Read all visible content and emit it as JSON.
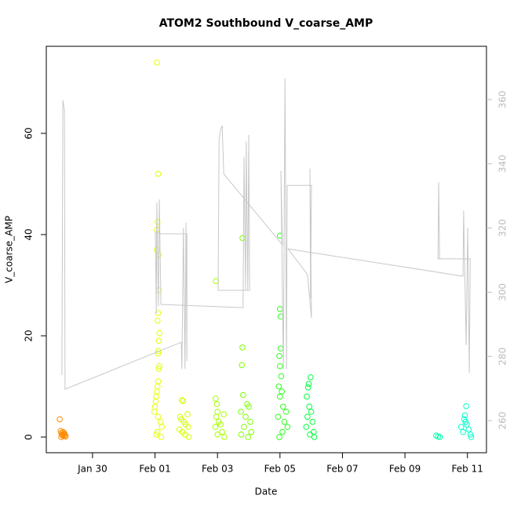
{
  "chart_data": {
    "type": "scatter",
    "title": "ATOM2 Southbound V_coarse_AMP",
    "x_label": "Date",
    "y_label": "V_coarse_AMP",
    "xlim": [
      -1.48,
      12.61
    ],
    "ylim": [
      -3.1,
      77.2
    ],
    "y2lim": [
      250,
      376.6
    ],
    "xticks": [
      {
        "value": 0,
        "label": "Jan 30"
      },
      {
        "value": 2,
        "label": "Feb 01"
      },
      {
        "value": 4,
        "label": "Feb 03"
      },
      {
        "value": 6,
        "label": "Feb 05"
      },
      {
        "value": 8,
        "label": "Feb 07"
      },
      {
        "value": 10,
        "label": "Feb 09"
      },
      {
        "value": 12,
        "label": "Feb 11"
      }
    ],
    "yticks": [
      0,
      20,
      40,
      60
    ],
    "y2ticks": [
      260,
      280,
      300,
      320,
      340,
      360
    ],
    "series": [
      {
        "color": "#ff8c00",
        "x": [
          -1.05,
          -1.02,
          -1.0,
          -0.98,
          -0.96,
          -0.94,
          -0.92,
          -0.9,
          -0.88,
          -0.86,
          -1.0,
          -0.95,
          -0.9
        ],
        "values": [
          3.5,
          1.2,
          0.8,
          0.5,
          0.3,
          1.0,
          0.6,
          0.2,
          0.4,
          0.1,
          0,
          0.3,
          0.7
        ]
      },
      {
        "color": "#e6ff00",
        "x": [
          2.06,
          2.1,
          2.08,
          2.06,
          2.06,
          2.12,
          2.12,
          2.1,
          2.08,
          2.14,
          2.12,
          2.1,
          2.1,
          2.14,
          2.12,
          2.1,
          2.08,
          2.06,
          2.04,
          2.02,
          2.0,
          1.98,
          2.1,
          2.18,
          2.22,
          2.08,
          2.04,
          2.2
        ],
        "values": [
          74,
          52,
          42.5,
          41,
          37,
          36,
          29,
          24.5,
          23,
          20.5,
          19,
          17,
          16.5,
          14,
          13.5,
          11,
          10,
          9,
          8,
          7,
          6,
          5,
          4,
          3,
          2,
          1,
          0.5,
          0
        ]
      },
      {
        "color": "#d4ff00",
        "x": [
          2.86,
          2.9,
          3.04,
          2.8,
          2.84,
          2.92,
          2.98,
          3.06,
          2.78,
          2.88,
          2.96,
          3.08
        ],
        "values": [
          7.3,
          7.1,
          4.5,
          4,
          3.5,
          3,
          2.5,
          2,
          1.5,
          1,
          0.5,
          0
        ]
      },
      {
        "color": "#a8ff00",
        "x": [
          3.95,
          3.94,
          3.98,
          4.0,
          4.2,
          3.96,
          4.04,
          4.1,
          3.93,
          4.15,
          4.0,
          4.22
        ],
        "values": [
          30.8,
          7.6,
          6.5,
          5,
          4.5,
          4,
          3,
          2.5,
          2,
          1,
          0.5,
          0
        ]
      },
      {
        "color": "#7cff00",
        "x": [
          4.8,
          4.8,
          4.78,
          4.82,
          4.95,
          5.0,
          4.75,
          4.9,
          5.05,
          4.85,
          5.08,
          4.76,
          4.98
        ],
        "values": [
          39.3,
          17.7,
          14.2,
          8.3,
          6.5,
          6,
          5,
          4,
          3,
          2,
          1,
          0.5,
          0
        ]
      },
      {
        "color": "#2bff1c",
        "x": [
          6.0,
          6.0,
          6.02,
          6.02,
          5.98,
          6.0,
          6.04,
          5.96,
          6.06,
          6.0,
          6.1,
          6.2,
          5.94,
          6.14,
          6.24,
          6.08,
          5.98
        ],
        "values": [
          39.8,
          25.3,
          23.8,
          17.5,
          16,
          14,
          12,
          10,
          9,
          8,
          6,
          5,
          4,
          3,
          2,
          1,
          0
        ]
      },
      {
        "color": "#00ff3c",
        "x": [
          6.98,
          6.92,
          6.9,
          6.86,
          6.94,
          7.0,
          6.88,
          7.04,
          6.84,
          7.08,
          6.96,
          7.1
        ],
        "values": [
          11.8,
          10.5,
          9.8,
          8,
          6,
          5,
          4,
          3,
          2,
          1,
          0.5,
          0
        ]
      },
      {
        "color": "#00ffa8",
        "x": [
          11.0,
          11.06,
          11.12
        ],
        "values": [
          0.3,
          0.1,
          0
        ]
      },
      {
        "color": "#00ffc8",
        "x": [
          11.96,
          11.92,
          11.9,
          11.94,
          11.98,
          11.8,
          12.04,
          11.86,
          12.1,
          12.12
        ],
        "values": [
          6.1,
          4.3,
          3.5,
          3,
          2.5,
          2,
          1.5,
          1,
          0.5,
          0
        ]
      },
      {
        "type": "line",
        "axis": "y2",
        "color": "#c8c8c8",
        "x": [
          -0.98,
          -0.95,
          -0.9,
          -0.88,
          2.84,
          2.86,
          2.91,
          2.96,
          2.99,
          3.02,
          3.02,
          2.19,
          2.01,
          2.04,
          2.06,
          2.11,
          2.14,
          2.19,
          4.82,
          4.85,
          4.9,
          4.92,
          4.97,
          5.0,
          5.03,
          4.02,
          4.05,
          4.1,
          4.15,
          4.2,
          6.08,
          6.03,
          6.11,
          6.16,
          6.21,
          6.23,
          7.01,
          6.98,
          6.96,
          7.01,
          6.88,
          6.26,
          11.86,
          11.88,
          11.96,
          12.01,
          12.06,
          12.09,
          11.06,
          11.08,
          11.11
        ],
        "values": [
          274.2,
          359.8,
          356.8,
          269.8,
          284.4,
          276.1,
          320.1,
          276.1,
          321.6,
          278.6,
          318.2,
          318.2,
          318.7,
          293.3,
          328.0,
          295.7,
          328.9,
          296.2,
          295.2,
          342.2,
          300.6,
          347.0,
          300.6,
          349.0,
          300.6,
          300.6,
          347.5,
          350.7,
          351.9,
          336.8,
          314.8,
          337.8,
          276.1,
          366.6,
          276.1,
          333.3,
          333.3,
          298.1,
          338.5,
          292.0,
          305.5,
          313.5,
          305.0,
          325.5,
          283.5,
          320.1,
          274.9,
          310.4,
          310.4,
          334.3,
          310.4
        ]
      }
    ]
  }
}
